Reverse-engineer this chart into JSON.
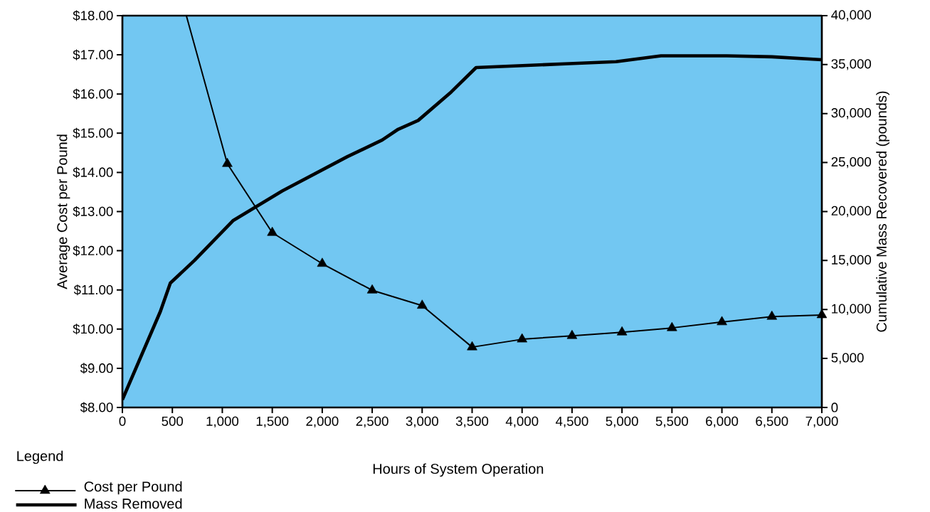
{
  "chart_data": {
    "type": "line",
    "xlabel": "Hours of System Operation",
    "ylabel": "Average Cost per Pound",
    "y2label": "Cumulative Mass Recovered (pounds)",
    "legend_title": "Legend",
    "legend": "bottom left",
    "grid": false,
    "line_style": "solid",
    "xlim": [
      0,
      7000
    ],
    "xticks": [
      0,
      500,
      {
        "value": 1000,
        "label": "1,000"
      },
      {
        "value": 1500,
        "label": "1,500"
      },
      {
        "value": 2000,
        "label": "2,000"
      },
      {
        "value": 2500,
        "label": "2,500"
      },
      {
        "value": 3000,
        "label": "3,000"
      },
      {
        "value": 3500,
        "label": "3,500"
      },
      {
        "value": 4000,
        "label": "4,000"
      },
      {
        "value": 4500,
        "label": "4,500"
      },
      {
        "value": 5000,
        "label": "5,000"
      },
      {
        "value": 5500,
        "label": "5,500"
      },
      {
        "value": 6000,
        "label": "6,000"
      },
      {
        "value": 6500,
        "label": "6,500"
      },
      {
        "value": 7000,
        "label": "7,000"
      }
    ],
    "ylim": [
      8,
      18
    ],
    "yticks": [
      {
        "value": 8,
        "label": "$8.00"
      },
      {
        "value": 9,
        "label": "$9.00"
      },
      {
        "value": 10,
        "label": "$10.00"
      },
      {
        "value": 11,
        "label": "$11.00"
      },
      {
        "value": 12,
        "label": "$12.00"
      },
      {
        "value": 13,
        "label": "$13.00"
      },
      {
        "value": 14,
        "label": "$14.00"
      },
      {
        "value": 15,
        "label": "$15.00"
      },
      {
        "value": 16,
        "label": "$16.00"
      },
      {
        "value": 17,
        "label": "$17.00"
      },
      {
        "value": 18,
        "label": "$18.00"
      }
    ],
    "y2lim": [
      0,
      40000
    ],
    "y2ticks": [
      0,
      {
        "value": 5000,
        "label": "5,000"
      },
      {
        "value": 10000,
        "label": "10,000"
      },
      {
        "value": 15000,
        "label": "15,000"
      },
      {
        "value": 20000,
        "label": "20,000"
      },
      {
        "value": 25000,
        "label": "25,000"
      },
      {
        "value": 30000,
        "label": "30,000"
      },
      {
        "value": 35000,
        "label": "35,000"
      },
      {
        "value": 40000,
        "label": "40,000"
      }
    ],
    "series": [
      {
        "name": "Cost per Pound",
        "marker": "triangle",
        "color": "#000000",
        "x": [
          640,
          1050,
          1500,
          2000,
          2500,
          3000,
          3500,
          4000,
          4500,
          5000,
          5500,
          6000,
          6500,
          7000
        ],
        "values": [
          18,
          14.22,
          12.46,
          11.67,
          10.99,
          10.6,
          9.54,
          9.74,
          9.83,
          9.92,
          10.03,
          10.18,
          10.32,
          10.36
        ]
      },
      {
        "name": "Mass Removed",
        "marker": "none",
        "axis": "y2",
        "color": "#000000",
        "x": [
          0,
          380,
          480,
          720,
          1110,
          1600,
          2250,
          2600,
          2760,
          2960,
          3290,
          3540,
          4470,
          4940,
          5390,
          6050,
          6500,
          7000
        ],
        "values": [
          800,
          9800,
          12700,
          15000,
          19100,
          22100,
          25600,
          27300,
          28400,
          29300,
          32200,
          34700,
          35100,
          35300,
          35900,
          35900,
          35800,
          35500
        ]
      }
    ]
  }
}
